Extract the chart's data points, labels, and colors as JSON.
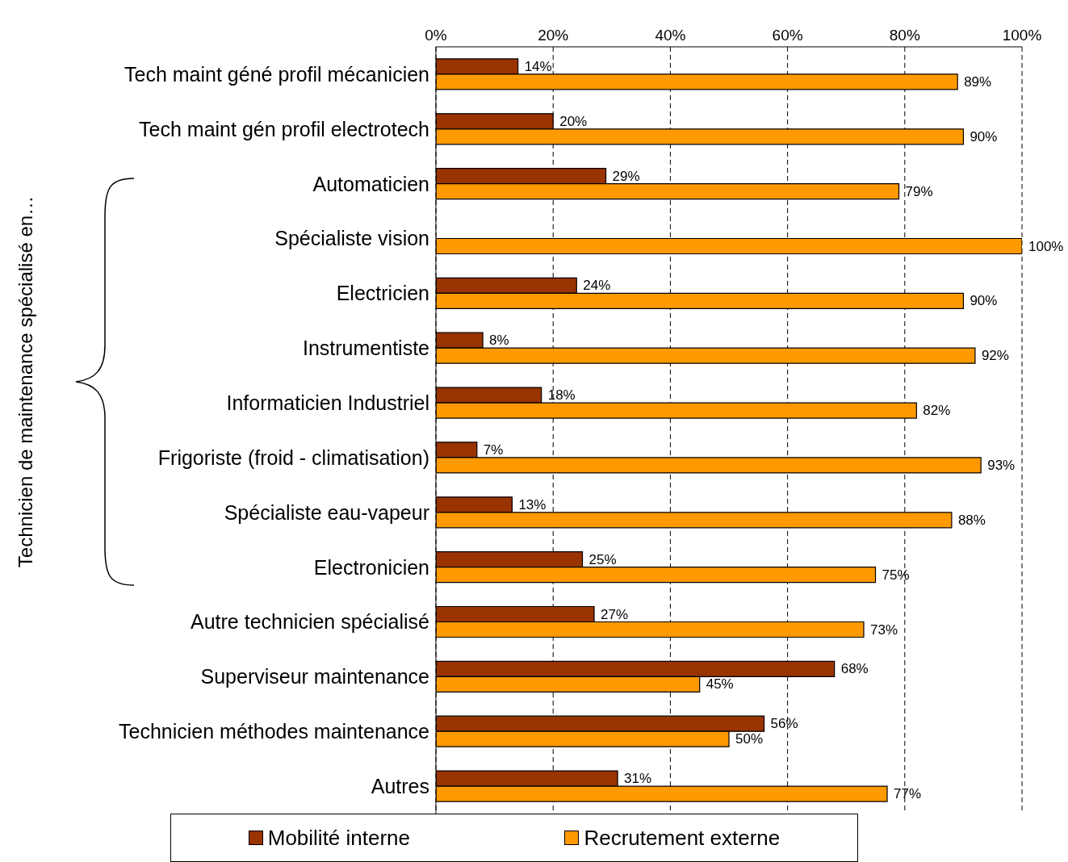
{
  "chart_data": {
    "type": "bar",
    "orientation": "horizontal",
    "ylabel": "Technicien de maintenance spécialisé en…",
    "categories": [
      "Tech maint géné profil mécanicien",
      "Tech maint gén profil electrotech",
      "Automaticien",
      "Spécialiste vision",
      "Electricien",
      "Instrumentiste",
      "Informaticien Industriel",
      "Frigoriste (froid - climatisation)",
      "Spécialiste eau-vapeur",
      "Electronicien",
      "Autre technicien spécialisé",
      "Superviseur maintenance",
      "Technicien méthodes maintenance",
      "Autres"
    ],
    "series": [
      {
        "name": "Mobilité interne",
        "color": "#993300",
        "values": [
          14,
          20,
          29,
          null,
          24,
          8,
          18,
          7,
          13,
          25,
          27,
          68,
          56,
          31
        ],
        "value_labels": [
          "14%",
          "20%",
          "29%",
          null,
          "24%",
          "8%",
          "18%",
          "7%",
          "13%",
          "25%",
          "27%",
          "68%",
          "56%",
          "31%"
        ]
      },
      {
        "name": "Recrutement externe",
        "color": "#ff9900",
        "values": [
          89,
          90,
          79,
          100,
          90,
          92,
          82,
          93,
          88,
          75,
          73,
          45,
          50,
          77
        ],
        "value_labels": [
          "89%",
          "90%",
          "79%",
          "100%",
          "90%",
          "92%",
          "82%",
          "93%",
          "88%",
          "75%",
          "73%",
          "45%",
          "50%",
          "77%"
        ]
      }
    ],
    "xlim": [
      0,
      100
    ],
    "xticks": [
      {
        "value": 0,
        "label": "0%"
      },
      {
        "value": 20,
        "label": "20%"
      },
      {
        "value": 40,
        "label": "40%"
      },
      {
        "value": 60,
        "label": "60%"
      },
      {
        "value": 80,
        "label": "80%"
      },
      {
        "value": 100,
        "label": "100%"
      }
    ],
    "grid": "x",
    "legend": "bottom"
  }
}
